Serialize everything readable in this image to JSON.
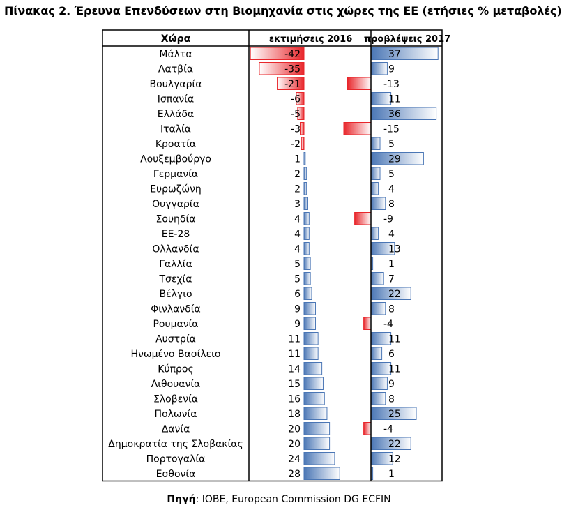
{
  "title": "Πίνακας 2. Έρευνα Επενδύσεων στη Βιομηχανία στις χώρες της ΕΕ (ετήσιες % μεταβολές)",
  "source_label": "Πηγή",
  "source_text": ": IOBE, European Commission DG ECFIN",
  "colors": {
    "negative": "#e8262b",
    "positive": "#4a76b5",
    "border": "#000000"
  },
  "chart_data": {
    "type": "table",
    "columns": [
      "Χώρα",
      "εκτιμήσεις 2016",
      "προβλέψεις 2017"
    ],
    "rows": [
      {
        "country": "Μάλτα",
        "est2016": -42,
        "proj2017": 37
      },
      {
        "country": "Λατβία",
        "est2016": -35,
        "proj2017": 9
      },
      {
        "country": "Βουλγαρία",
        "est2016": -21,
        "proj2017": -13
      },
      {
        "country": "Ισπανία",
        "est2016": -6,
        "proj2017": 11
      },
      {
        "country": "Ελλάδα",
        "est2016": -5,
        "proj2017": 36
      },
      {
        "country": "Ιταλία",
        "est2016": -3,
        "proj2017": -15
      },
      {
        "country": "Κροατία",
        "est2016": -2,
        "proj2017": 5
      },
      {
        "country": "Λουξεμβούργο",
        "est2016": 1,
        "proj2017": 29
      },
      {
        "country": "Γερμανία",
        "est2016": 2,
        "proj2017": 5
      },
      {
        "country": "Ευρωζώνη",
        "est2016": 2,
        "proj2017": 4
      },
      {
        "country": "Ουγγαρία",
        "est2016": 3,
        "proj2017": 8
      },
      {
        "country": "Σουηδία",
        "est2016": 4,
        "proj2017": -9
      },
      {
        "country": "ΕΕ-28",
        "est2016": 4,
        "proj2017": 4
      },
      {
        "country": "Ολλανδία",
        "est2016": 4,
        "proj2017": 13
      },
      {
        "country": "Γαλλία",
        "est2016": 5,
        "proj2017": 1
      },
      {
        "country": "Τσεχία",
        "est2016": 5,
        "proj2017": 7
      },
      {
        "country": "Βέλγιο",
        "est2016": 6,
        "proj2017": 22
      },
      {
        "country": "Φινλανδία",
        "est2016": 9,
        "proj2017": 8
      },
      {
        "country": "Ρουμανία",
        "est2016": 9,
        "proj2017": -4
      },
      {
        "country": "Αυστρία",
        "est2016": 11,
        "proj2017": 11
      },
      {
        "country": "Ηνωμένο Βασίλειο",
        "est2016": 11,
        "proj2017": 6
      },
      {
        "country": "Κύπρος",
        "est2016": 14,
        "proj2017": 11
      },
      {
        "country": "Λιθουανία",
        "est2016": 15,
        "proj2017": 9
      },
      {
        "country": "Σλοβενία",
        "est2016": 16,
        "proj2017": 8
      },
      {
        "country": "Πολωνία",
        "est2016": 18,
        "proj2017": 25
      },
      {
        "country": "Δανία",
        "est2016": 20,
        "proj2017": -4
      },
      {
        "country": "Δημοκρατία της Σλοβακίας",
        "est2016": 20,
        "proj2017": 22
      },
      {
        "country": "Πορτογαλία",
        "est2016": 24,
        "proj2017": 12
      },
      {
        "country": "Εσθονία",
        "est2016": 28,
        "proj2017": 1
      }
    ]
  }
}
